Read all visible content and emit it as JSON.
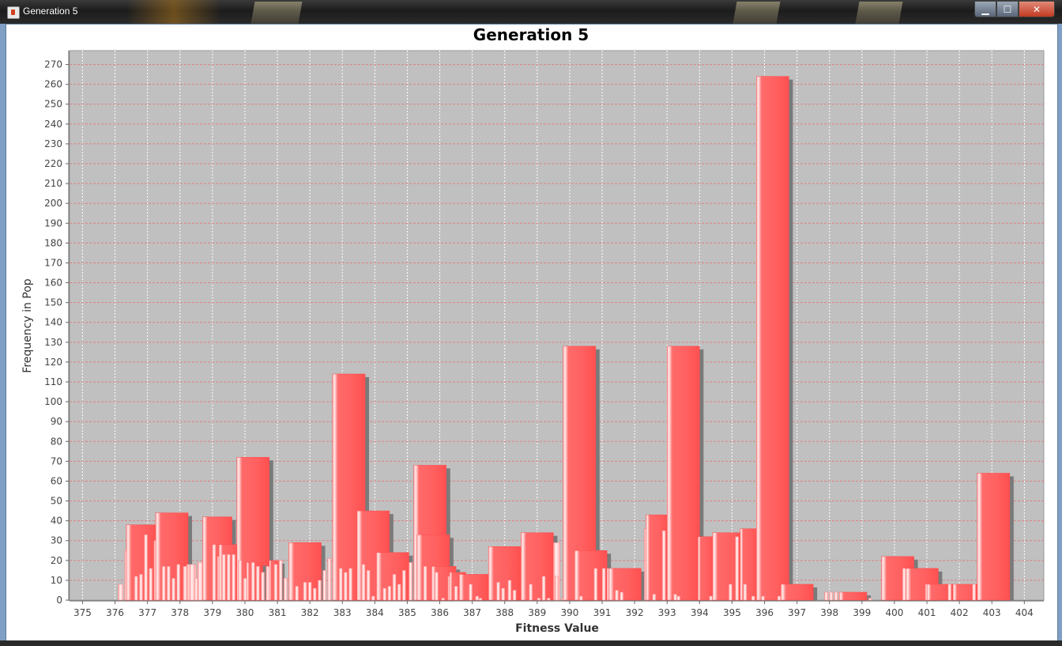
{
  "window": {
    "title": "Generation 5",
    "controls": {
      "minimize_label": "▁",
      "maximize_label": "☐",
      "close_label": "✕"
    }
  },
  "chart_data": {
    "type": "bar",
    "title": "Generation 5",
    "xlabel": "Fitness Value",
    "ylabel": "Frequency in Pop",
    "xlim": [
      374.6,
      404.6
    ],
    "ylim": [
      0,
      277
    ],
    "x_ticks": [
      375,
      376,
      377,
      378,
      379,
      380,
      381,
      382,
      383,
      384,
      385,
      386,
      387,
      388,
      389,
      390,
      391,
      392,
      393,
      394,
      395,
      396,
      397,
      398,
      399,
      400,
      401,
      402,
      403,
      404
    ],
    "y_ticks": [
      0,
      10,
      20,
      30,
      40,
      50,
      60,
      70,
      80,
      90,
      100,
      110,
      120,
      130,
      140,
      150,
      160,
      170,
      180,
      190,
      200,
      210,
      220,
      230,
      240,
      250,
      260,
      270
    ],
    "grid": true,
    "colors": {
      "bar": "#ff5f5f",
      "bar_highlight": "#ffd8d8",
      "shadow": "#7a7a7a",
      "plot_bg": "#c0c0c0",
      "y_grid": "#e08080",
      "x_grid": "#ffffff"
    },
    "series": [
      {
        "values": [
          [
            376.1,
            376.25,
            8
          ],
          [
            376.3,
            376.4,
            25
          ],
          [
            376.35,
            377.3,
            38
          ],
          [
            376.6,
            376.7,
            12
          ],
          [
            376.75,
            376.85,
            13
          ],
          [
            376.9,
            377.0,
            33
          ],
          [
            377.05,
            377.15,
            16
          ],
          [
            377.2,
            377.3,
            30
          ],
          [
            377.25,
            378.25,
            44
          ],
          [
            377.45,
            377.55,
            17
          ],
          [
            377.6,
            377.7,
            17
          ],
          [
            377.75,
            377.85,
            11
          ],
          [
            377.9,
            378.0,
            18
          ],
          [
            378.1,
            378.25,
            17
          ],
          [
            378.2,
            378.5,
            18
          ],
          [
            378.3,
            378.45,
            18
          ],
          [
            378.45,
            378.55,
            11
          ],
          [
            378.55,
            378.7,
            19
          ],
          [
            378.7,
            379.6,
            42
          ],
          [
            379.0,
            379.1,
            28
          ],
          [
            379.15,
            379.25,
            22
          ],
          [
            379.2,
            379.9,
            28
          ],
          [
            379.3,
            379.4,
            23
          ],
          [
            379.45,
            379.55,
            23
          ],
          [
            379.6,
            379.7,
            23
          ],
          [
            379.75,
            380.75,
            72
          ],
          [
            379.8,
            379.9,
            20
          ],
          [
            379.95,
            380.1,
            11
          ],
          [
            380.05,
            380.55,
            19
          ],
          [
            380.2,
            380.3,
            19
          ],
          [
            380.35,
            380.45,
            17
          ],
          [
            380.5,
            380.6,
            14
          ],
          [
            380.65,
            380.8,
            17
          ],
          [
            380.75,
            381.1,
            20
          ],
          [
            380.9,
            381.0,
            18
          ],
          [
            381.05,
            381.15,
            20
          ],
          [
            381.2,
            381.3,
            11
          ],
          [
            381.35,
            382.35,
            29
          ],
          [
            381.55,
            381.65,
            7
          ],
          [
            381.8,
            381.9,
            9
          ],
          [
            381.95,
            382.05,
            9
          ],
          [
            382.1,
            382.2,
            6
          ],
          [
            382.25,
            382.35,
            10
          ],
          [
            382.4,
            382.5,
            15
          ],
          [
            382.55,
            382.65,
            21
          ],
          [
            382.7,
            383.7,
            114
          ],
          [
            382.9,
            383.0,
            16
          ],
          [
            383.05,
            383.15,
            14
          ],
          [
            383.2,
            383.3,
            16
          ],
          [
            383.45,
            384.45,
            45
          ],
          [
            383.6,
            383.7,
            18
          ],
          [
            383.75,
            383.85,
            15
          ],
          [
            383.9,
            384.0,
            2
          ],
          [
            384.05,
            385.05,
            24
          ],
          [
            384.25,
            384.35,
            6
          ],
          [
            384.4,
            384.5,
            7
          ],
          [
            384.55,
            384.65,
            13
          ],
          [
            384.7,
            384.8,
            8
          ],
          [
            384.85,
            384.95,
            15
          ],
          [
            385.05,
            385.15,
            19
          ],
          [
            385.2,
            386.2,
            68
          ],
          [
            385.3,
            386.3,
            33
          ],
          [
            385.5,
            385.6,
            17
          ],
          [
            385.75,
            386.5,
            17
          ],
          [
            385.85,
            385.95,
            14
          ],
          [
            386.05,
            386.15,
            1
          ],
          [
            386.25,
            386.35,
            12
          ],
          [
            386.3,
            386.8,
            14
          ],
          [
            386.45,
            386.55,
            7
          ],
          [
            386.6,
            387.5,
            13
          ],
          [
            386.9,
            387.0,
            8
          ],
          [
            387.1,
            387.2,
            2
          ],
          [
            387.2,
            387.3,
            1
          ],
          [
            387.5,
            388.5,
            27
          ],
          [
            387.75,
            387.85,
            9
          ],
          [
            387.9,
            388.0,
            6
          ],
          [
            388.1,
            388.2,
            10
          ],
          [
            388.25,
            388.35,
            5
          ],
          [
            388.5,
            389.5,
            34
          ],
          [
            388.75,
            388.85,
            8
          ],
          [
            389.0,
            389.1,
            1
          ],
          [
            389.15,
            389.25,
            12
          ],
          [
            389.3,
            389.4,
            1
          ],
          [
            389.5,
            389.7,
            29
          ],
          [
            389.55,
            389.65,
            12
          ],
          [
            389.75,
            389.85,
            1
          ],
          [
            389.8,
            390.8,
            128
          ],
          [
            390.15,
            391.15,
            25
          ],
          [
            390.3,
            390.4,
            2
          ],
          [
            390.75,
            390.85,
            16
          ],
          [
            391.0,
            391.1,
            16
          ],
          [
            391.15,
            391.25,
            16
          ],
          [
            391.2,
            392.2,
            16
          ],
          [
            391.4,
            391.5,
            5
          ],
          [
            391.55,
            391.65,
            4
          ],
          [
            392.3,
            392.4,
            36
          ],
          [
            392.35,
            393.05,
            43
          ],
          [
            392.55,
            392.65,
            3
          ],
          [
            392.85,
            392.95,
            35
          ],
          [
            393.0,
            394.0,
            128
          ],
          [
            393.2,
            393.3,
            3
          ],
          [
            393.3,
            393.4,
            2
          ],
          [
            393.95,
            394.45,
            32
          ],
          [
            394.3,
            394.4,
            2
          ],
          [
            394.4,
            395.4,
            34
          ],
          [
            394.9,
            395.0,
            8
          ],
          [
            395.1,
            395.2,
            32
          ],
          [
            395.25,
            395.8,
            36
          ],
          [
            395.35,
            395.45,
            8
          ],
          [
            395.6,
            395.7,
            2
          ],
          [
            395.75,
            396.75,
            264
          ],
          [
            395.9,
            396.0,
            2
          ],
          [
            396.4,
            396.5,
            2
          ],
          [
            396.5,
            397.5,
            8
          ],
          [
            397.85,
            397.95,
            4
          ],
          [
            398.0,
            398.1,
            4
          ],
          [
            398.15,
            398.25,
            4
          ],
          [
            398.3,
            399.15,
            4
          ],
          [
            399.2,
            399.3,
            1
          ],
          [
            399.6,
            400.6,
            22
          ],
          [
            400.25,
            400.35,
            16
          ],
          [
            400.35,
            401.35,
            16
          ],
          [
            400.95,
            401.05,
            8
          ],
          [
            401.0,
            401.8,
            8
          ],
          [
            401.65,
            401.75,
            8
          ],
          [
            401.8,
            402.6,
            8
          ],
          [
            402.4,
            402.5,
            8
          ],
          [
            402.55,
            403.55,
            64
          ]
        ]
      }
    ]
  }
}
